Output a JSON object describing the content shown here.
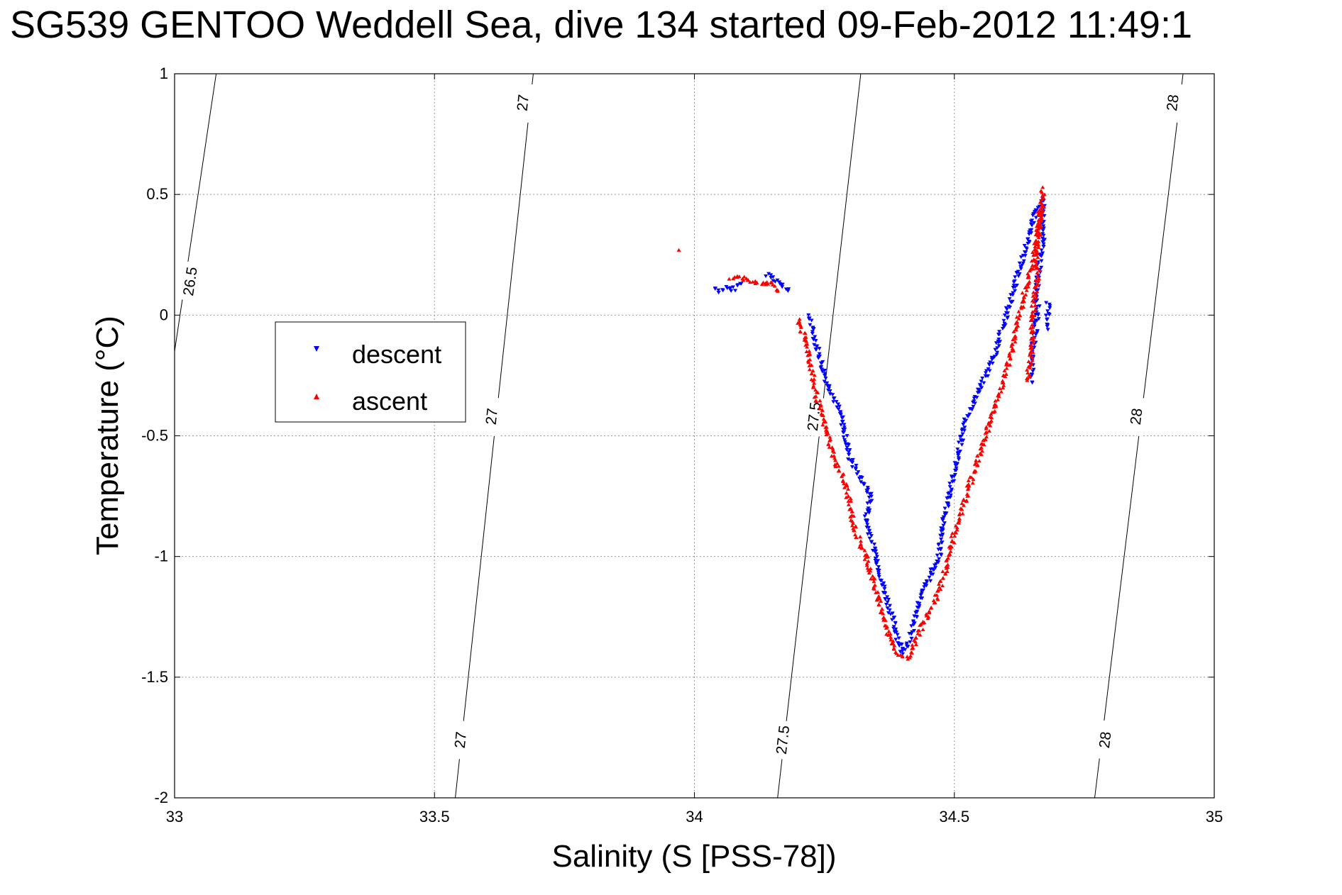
{
  "chart_data": {
    "type": "scatter",
    "title": "SG539 GENTOO Weddell Sea, dive 134 started 09-Feb-2012 11:49:1",
    "xlabel": "Salinity (S [PSS-78])",
    "ylabel": "Temperature (°C)",
    "xlim": [
      33,
      35
    ],
    "ylim": [
      -2,
      1
    ],
    "x_ticks": [
      "33",
      "33.5",
      "34",
      "34.5",
      "35"
    ],
    "y_ticks": [
      "1",
      "0.5",
      "0",
      "-0.5",
      "-1",
      "-1.5",
      "-2"
    ],
    "grid": true,
    "legend_position": "upper-left",
    "contours": [
      {
        "label": "26.5",
        "points": [
          [
            33.0,
            -0.15
          ],
          [
            33.08,
            1.0
          ]
        ],
        "labels_at": [
          {
            "x": 33.03,
            "y": 0.14
          }
        ]
      },
      {
        "label": "27",
        "points": [
          [
            33.54,
            -2.0
          ],
          [
            33.69,
            1.0
          ]
        ],
        "labels_at": [
          {
            "x": 33.55,
            "y": -1.76
          },
          {
            "x": 33.61,
            "y": -0.42
          },
          {
            "x": 33.67,
            "y": 0.88
          }
        ]
      },
      {
        "label": "27.5",
        "points": [
          [
            34.16,
            -2.0
          ],
          [
            34.32,
            1.0
          ]
        ],
        "labels_at": [
          {
            "x": 34.17,
            "y": -1.76
          },
          {
            "x": 34.23,
            "y": -0.42
          }
        ]
      },
      {
        "label": "28",
        "points": [
          [
            34.77,
            -2.0
          ],
          [
            34.94,
            1.0
          ]
        ],
        "labels_at": [
          {
            "x": 34.79,
            "y": -1.76
          },
          {
            "x": 34.85,
            "y": -0.42
          },
          {
            "x": 34.92,
            "y": 0.88
          }
        ]
      }
    ],
    "series": [
      {
        "name": "descent",
        "color": "#0000ff",
        "marker": "triangle-down",
        "segments": [
          [
            [
              34.04,
              0.11
            ],
            [
              34.05,
              0.1
            ],
            [
              34.06,
              0.11
            ],
            [
              34.07,
              0.1
            ],
            [
              34.08,
              0.12
            ],
            [
              34.09,
              0.13
            ]
          ],
          [
            [
              34.14,
              0.17
            ],
            [
              34.15,
              0.16
            ],
            [
              34.16,
              0.14
            ],
            [
              34.17,
              0.12
            ],
            [
              34.18,
              0.1
            ]
          ],
          [
            [
              34.22,
              0.0
            ],
            [
              34.25,
              -0.25
            ],
            [
              34.28,
              -0.4
            ],
            [
              34.3,
              -0.6
            ],
            [
              34.34,
              -0.75
            ],
            [
              34.33,
              -0.85
            ],
            [
              34.35,
              -1.0
            ],
            [
              34.36,
              -1.1
            ],
            [
              34.38,
              -1.25
            ],
            [
              34.4,
              -1.4
            ],
            [
              34.41,
              -1.38
            ],
            [
              34.43,
              -1.2
            ],
            [
              34.45,
              -1.1
            ],
            [
              34.47,
              -1.0
            ],
            [
              34.48,
              -0.85
            ],
            [
              34.5,
              -0.65
            ],
            [
              34.52,
              -0.45
            ],
            [
              34.55,
              -0.3
            ],
            [
              34.58,
              -0.15
            ],
            [
              34.6,
              0.0
            ],
            [
              34.62,
              0.15
            ],
            [
              34.64,
              0.3
            ],
            [
              34.66,
              0.45
            ],
            [
              34.67,
              0.48
            ]
          ],
          [
            [
              34.67,
              0.45
            ],
            [
              34.67,
              0.3
            ],
            [
              34.66,
              0.15
            ],
            [
              34.66,
              0.0
            ],
            [
              34.65,
              -0.15
            ],
            [
              34.65,
              -0.28
            ]
          ],
          [
            [
              34.68,
              0.05
            ],
            [
              34.68,
              -0.06
            ]
          ]
        ]
      },
      {
        "name": "ascent",
        "color": "#ff0000",
        "marker": "triangle-up",
        "segments": [
          [
            [
              33.97,
              0.27
            ]
          ],
          [
            [
              34.07,
              0.15
            ],
            [
              34.09,
              0.16
            ],
            [
              34.11,
              0.14
            ],
            [
              34.13,
              0.13
            ],
            [
              34.15,
              0.13
            ],
            [
              34.16,
              0.1
            ]
          ],
          [
            [
              34.2,
              -0.02
            ],
            [
              34.22,
              -0.15
            ],
            [
              34.23,
              -0.3
            ],
            [
              34.25,
              -0.45
            ],
            [
              34.27,
              -0.6
            ],
            [
              34.29,
              -0.7
            ],
            [
              34.3,
              -0.8
            ],
            [
              34.31,
              -0.9
            ],
            [
              34.33,
              -1.0
            ],
            [
              34.35,
              -1.15
            ],
            [
              34.37,
              -1.3
            ],
            [
              34.39,
              -1.4
            ],
            [
              34.41,
              -1.42
            ],
            [
              34.42,
              -1.38
            ],
            [
              34.44,
              -1.28
            ],
            [
              34.46,
              -1.2
            ],
            [
              34.48,
              -1.08
            ],
            [
              34.5,
              -0.9
            ],
            [
              34.53,
              -0.7
            ],
            [
              34.56,
              -0.5
            ],
            [
              34.59,
              -0.3
            ],
            [
              34.61,
              -0.15
            ],
            [
              34.63,
              0.05
            ],
            [
              34.65,
              0.2
            ],
            [
              34.66,
              0.35
            ],
            [
              34.67,
              0.5
            ],
            [
              34.67,
              0.53
            ]
          ],
          [
            [
              34.67,
              0.45
            ],
            [
              34.66,
              0.3
            ],
            [
              34.66,
              0.15
            ],
            [
              34.65,
              0.0
            ],
            [
              34.65,
              -0.15
            ],
            [
              34.64,
              -0.27
            ]
          ]
        ]
      }
    ]
  }
}
